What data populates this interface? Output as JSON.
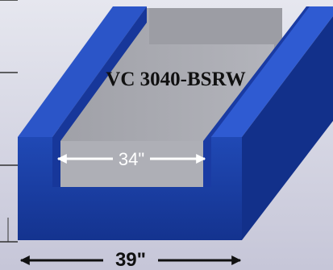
{
  "diagram": {
    "model_label": "VC 3040-BSRW",
    "inner_width_label": "34\"",
    "outer_width_label": "39\"",
    "colors": {
      "background_top": "#dcdde8",
      "background_bottom": "#c4c4d6",
      "body_blue": "#1c3fa6",
      "body_blue_dark": "#102a7c",
      "top_blue": "#2e5ad0",
      "channel_gray": "#a9aab1",
      "channel_gray_dark": "#8e8f96",
      "arrow_white": "#ffffff",
      "arrow_black": "#111111"
    }
  }
}
